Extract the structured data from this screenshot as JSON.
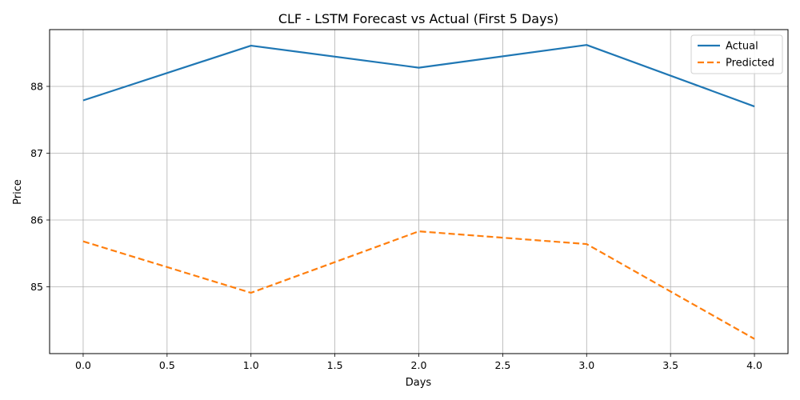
{
  "chart_data": {
    "type": "line",
    "title": "CLF - LSTM Forecast vs Actual (First 5 Days)",
    "xlabel": "Days",
    "ylabel": "Price",
    "x": [
      0,
      1,
      2,
      3,
      4
    ],
    "series": [
      {
        "name": "Actual",
        "values": [
          87.79,
          88.61,
          88.28,
          88.62,
          87.7
        ],
        "color": "#1f77b4",
        "style": "solid"
      },
      {
        "name": "Predicted",
        "values": [
          85.68,
          84.91,
          85.83,
          85.64,
          84.22
        ],
        "color": "#ff7f0e",
        "style": "dashed"
      }
    ],
    "xlim": [
      -0.2,
      4.2
    ],
    "ylim": [
      84.0,
      88.85
    ],
    "xticks": [
      0.0,
      0.5,
      1.0,
      1.5,
      2.0,
      2.5,
      3.0,
      3.5,
      4.0
    ],
    "xtick_labels": [
      "0.0",
      "0.5",
      "1.0",
      "1.5",
      "2.0",
      "2.5",
      "3.0",
      "3.5",
      "4.0"
    ],
    "yticks": [
      85,
      86,
      87,
      88
    ],
    "ytick_labels": [
      "85",
      "86",
      "87",
      "88"
    ],
    "grid": true,
    "legend_position": "top-right"
  }
}
